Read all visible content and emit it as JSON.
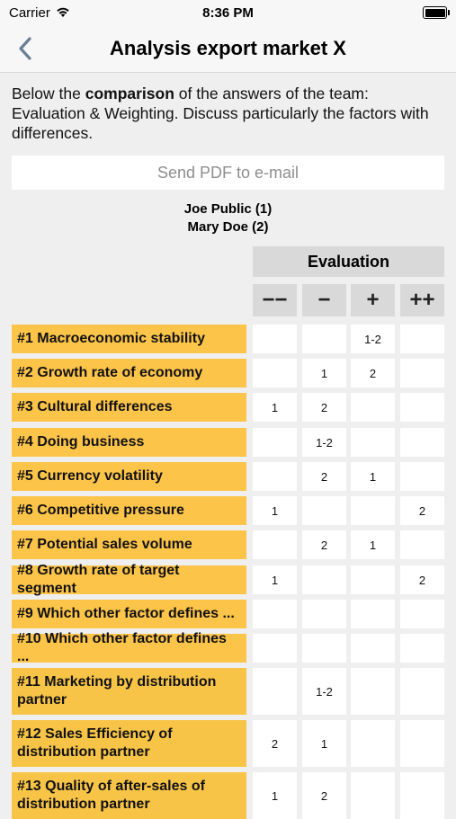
{
  "status": {
    "carrier": "Carrier",
    "time": "8:36 PM"
  },
  "nav": {
    "title": "Analysis export market X"
  },
  "intro": {
    "before": "Below the ",
    "bold": "comparison",
    "after": " of the answers of the team: Evaluation & Weighting. Discuss particularly the factors with differences."
  },
  "pdf_button": "Send PDF to e-mail",
  "people": [
    "Joe Public (1)",
    "Mary Doe (2)"
  ],
  "evaluation_header": "Evaluation",
  "scale": [
    "−−",
    "−",
    "+",
    "++"
  ],
  "rows": [
    {
      "label": "#1 Macroeconomic stability",
      "cells": [
        "",
        "",
        "1-2",
        ""
      ]
    },
    {
      "label": "#2 Growth rate of economy",
      "cells": [
        "",
        "1",
        "2",
        ""
      ]
    },
    {
      "label": "#3 Cultural differences",
      "cells": [
        "1",
        "2",
        "",
        ""
      ]
    },
    {
      "label": "#4 Doing business",
      "cells": [
        "",
        "1-2",
        "",
        ""
      ]
    },
    {
      "label": "#5 Currency volatility",
      "cells": [
        "",
        "2",
        "1",
        ""
      ]
    },
    {
      "label": "#6 Competitive pressure",
      "cells": [
        "1",
        "",
        "",
        "2"
      ]
    },
    {
      "label": "#7 Potential sales volume",
      "cells": [
        "",
        "2",
        "1",
        ""
      ]
    },
    {
      "label": "#8 Growth rate of target segment",
      "cells": [
        "1",
        "",
        "",
        "2"
      ]
    },
    {
      "label": "#9 Which other factor defines ...",
      "cells": [
        "",
        "",
        "",
        ""
      ]
    },
    {
      "label": "#10 Which other factor defines ...",
      "cells": [
        "",
        "",
        "",
        ""
      ]
    },
    {
      "label": "#11 Marketing by distribution partner",
      "cells": [
        "",
        "1-2",
        "",
        ""
      ]
    },
    {
      "label": "#12 Sales Efficiency of distribution partner",
      "cells": [
        "2",
        "1",
        "",
        ""
      ]
    },
    {
      "label": "#13 Quality of after-sales of distribution partner",
      "cells": [
        "1",
        "2",
        "",
        ""
      ]
    }
  ]
}
